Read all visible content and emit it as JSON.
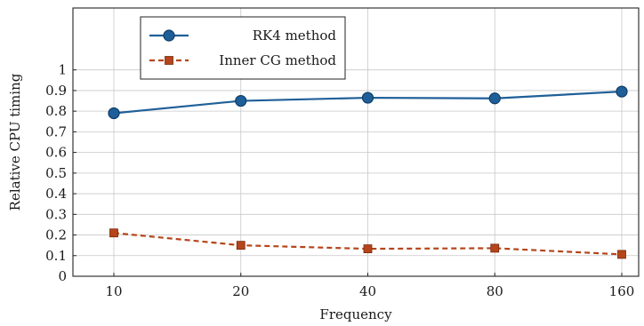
{
  "chart_data": {
    "type": "line",
    "title": "",
    "xlabel": "Frequency",
    "ylabel": "Relative CPU timing",
    "categories": [
      "10",
      "20",
      "40",
      "80",
      "160"
    ],
    "yticks": [
      "0",
      "0.1",
      "0.2",
      "0.3",
      "0.4",
      "0.5",
      "0.6",
      "0.7",
      "0.8",
      "0.9",
      "1"
    ],
    "ylim": [
      0,
      1.3
    ],
    "grid": true,
    "legend_position": "top-left",
    "series": [
      {
        "name": "RK4 method",
        "values": [
          0.79,
          0.85,
          0.865,
          0.862,
          0.895
        ],
        "color": "#1f5f99",
        "marker": "circle",
        "line": "solid"
      },
      {
        "name": "Inner CG method",
        "values": [
          0.21,
          0.15,
          0.133,
          0.136,
          0.106
        ],
        "color": "#b5451b",
        "marker": "square",
        "line": "dashed"
      }
    ]
  }
}
